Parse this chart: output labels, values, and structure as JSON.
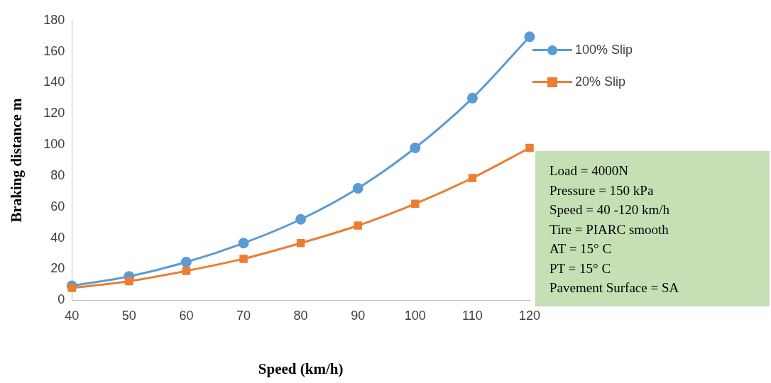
{
  "chart_data": {
    "type": "line",
    "xlabel": "Speed (km/h)",
    "ylabel": "Braking distance m",
    "categories": [
      "40",
      "50",
      "60",
      "70",
      "80",
      "90",
      "100",
      "110",
      "120"
    ],
    "series": [
      {
        "name": "100% Slip",
        "color": "#5b9bd5",
        "marker": "circle",
        "values": [
          9.2,
          15.3,
          24.5,
          36.7,
          52,
          72,
          98,
          130,
          169.5
        ]
      },
      {
        "name": "20% Slip",
        "color": "#ed7d31",
        "marker": "square",
        "values": [
          7.9,
          12.2,
          18.8,
          26.6,
          36.7,
          48,
          62,
          78.6,
          98
        ]
      }
    ],
    "ylim": [
      0,
      180
    ],
    "yticks": [
      0,
      20,
      40,
      60,
      80,
      100,
      120,
      140,
      160,
      180
    ],
    "grid": false,
    "legend": "top right",
    "annotations": [
      "Load = 4000N",
      "Pressure = 150 kPa",
      "Speed = 40 -120 km/h",
      "Tire = PIARC smooth",
      "AT = 15° C",
      "PT = 15° C",
      "Pavement Surface = SA"
    ]
  }
}
